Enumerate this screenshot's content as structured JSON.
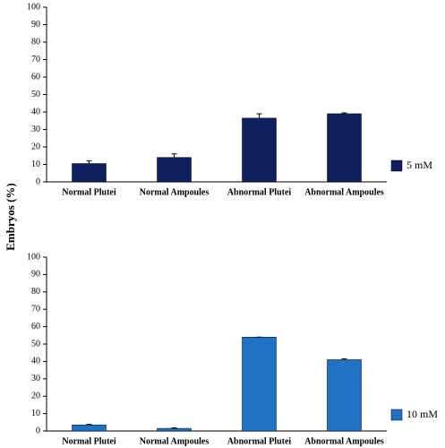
{
  "chart_data": [
    {
      "type": "bar",
      "ylabel": "Embryos (%)",
      "categories": [
        "Normal Plutei",
        "Normal Ampoules",
        "Abnormal Plutei",
        "Abnormal Ampoules"
      ],
      "series": [
        {
          "name": "5 mM",
          "color": "#0e1f5e",
          "values": [
            10.5,
            14,
            36.5,
            39
          ],
          "errors": [
            1.5,
            2,
            2.5,
            0.5
          ]
        }
      ],
      "ylim": [
        0,
        100
      ],
      "yticks": [
        0,
        10,
        20,
        30,
        40,
        50,
        60,
        70,
        80,
        90,
        100
      ]
    },
    {
      "type": "bar",
      "categories": [
        "Normal Plutei",
        "Normal Ampoules",
        "Abnormal Plutei",
        "Abnormal Ampoules"
      ],
      "series": [
        {
          "name": "10 mM",
          "color": "#1f72c6",
          "values": [
            3.5,
            1.5,
            54,
            41
          ],
          "errors": [
            0.3,
            0.3,
            0,
            0.5
          ]
        }
      ],
      "ylim": [
        0,
        100
      ],
      "yticks": [
        0,
        10,
        20,
        30,
        40,
        50,
        60,
        70,
        80,
        90,
        100
      ]
    }
  ]
}
